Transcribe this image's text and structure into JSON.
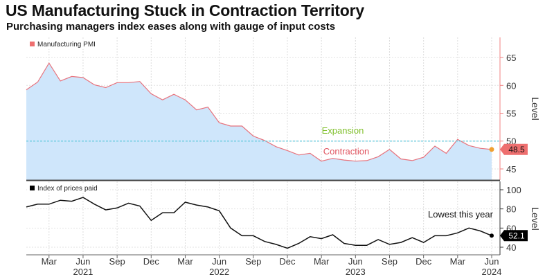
{
  "title": "US Manufacturing Stuck in Contraction Territory",
  "subtitle": "Purchasing managers index eases along with gauge of input costs",
  "colors": {
    "pmi_line": "#e8727c",
    "pmi_fill": "#cfe6fb",
    "prices_line": "#111111",
    "threshold": "#5cc8dc",
    "expansion_text": "#7fbf2a",
    "contraction_text": "#e0545f",
    "pmi_badge": "#ee6f6f",
    "pmi_point": "#f0a030"
  },
  "chart_data": [
    {
      "type": "area",
      "title": "Manufacturing PMI",
      "legend": "Manufacturing PMI",
      "ylabel": "Level",
      "ylim": [
        44,
        67
      ],
      "yticks": [
        45,
        50,
        55,
        60,
        65
      ],
      "x": [
        "2021-01",
        "2021-02",
        "2021-03",
        "2021-04",
        "2021-05",
        "2021-06",
        "2021-07",
        "2021-08",
        "2021-09",
        "2021-10",
        "2021-11",
        "2021-12",
        "2022-01",
        "2022-02",
        "2022-03",
        "2022-04",
        "2022-05",
        "2022-06",
        "2022-07",
        "2022-08",
        "2022-09",
        "2022-10",
        "2022-11",
        "2022-12",
        "2023-01",
        "2023-02",
        "2023-03",
        "2023-04",
        "2023-05",
        "2023-06",
        "2023-07",
        "2023-08",
        "2023-09",
        "2023-10",
        "2023-11",
        "2023-12",
        "2024-01",
        "2024-02",
        "2024-03",
        "2024-04",
        "2024-05",
        "2024-06"
      ],
      "values": [
        59.2,
        60.6,
        64.0,
        60.8,
        61.6,
        61.4,
        60.1,
        59.6,
        60.5,
        60.5,
        60.7,
        58.5,
        57.4,
        58.4,
        57.4,
        55.6,
        56.1,
        53.3,
        52.7,
        52.7,
        50.9,
        50.1,
        49.0,
        48.3,
        47.5,
        47.8,
        46.4,
        46.9,
        46.6,
        46.4,
        46.5,
        47.2,
        48.5,
        46.8,
        46.5,
        47.1,
        49.1,
        47.8,
        50.3,
        49.2,
        48.7,
        48.5
      ],
      "threshold": 50,
      "annotations": {
        "above": "Expansion",
        "below": "Contraction"
      },
      "last_value_label": "48.5"
    },
    {
      "type": "line",
      "title": "Index of prices paid",
      "legend": "Index of prices paid",
      "ylabel": "Level",
      "ylim": [
        35,
        105
      ],
      "yticks": [
        40,
        60,
        80,
        100
      ],
      "x": [
        "2021-01",
        "2021-02",
        "2021-03",
        "2021-04",
        "2021-05",
        "2021-06",
        "2021-07",
        "2021-08",
        "2021-09",
        "2021-10",
        "2021-11",
        "2021-12",
        "2022-01",
        "2022-02",
        "2022-03",
        "2022-04",
        "2022-05",
        "2022-06",
        "2022-07",
        "2022-08",
        "2022-09",
        "2022-10",
        "2022-11",
        "2022-12",
        "2023-01",
        "2023-02",
        "2023-03",
        "2023-04",
        "2023-05",
        "2023-06",
        "2023-07",
        "2023-08",
        "2023-09",
        "2023-10",
        "2023-11",
        "2023-12",
        "2024-01",
        "2024-02",
        "2024-03",
        "2024-04",
        "2024-05",
        "2024-06"
      ],
      "values": [
        82,
        85,
        85,
        89,
        88,
        92,
        85,
        79,
        81,
        86,
        83,
        68,
        76,
        76,
        87,
        84,
        82,
        78,
        60,
        52,
        52,
        46,
        43,
        39,
        44,
        51,
        49,
        53,
        44,
        42,
        42,
        48,
        43,
        45,
        50,
        45,
        52,
        52,
        55,
        60,
        57,
        52.1
      ],
      "annotations": {
        "note": "Lowest this year"
      },
      "last_value_label": "52.1"
    }
  ],
  "x_axis": {
    "month_ticks": [
      "Mar",
      "Jun",
      "Sep",
      "Dec",
      "Mar",
      "Jun",
      "Sep",
      "Dec",
      "Mar",
      "Jun",
      "Sep",
      "Dec",
      "Mar",
      "Jun"
    ],
    "years": [
      "2021",
      "2022",
      "2023",
      "2024"
    ]
  }
}
